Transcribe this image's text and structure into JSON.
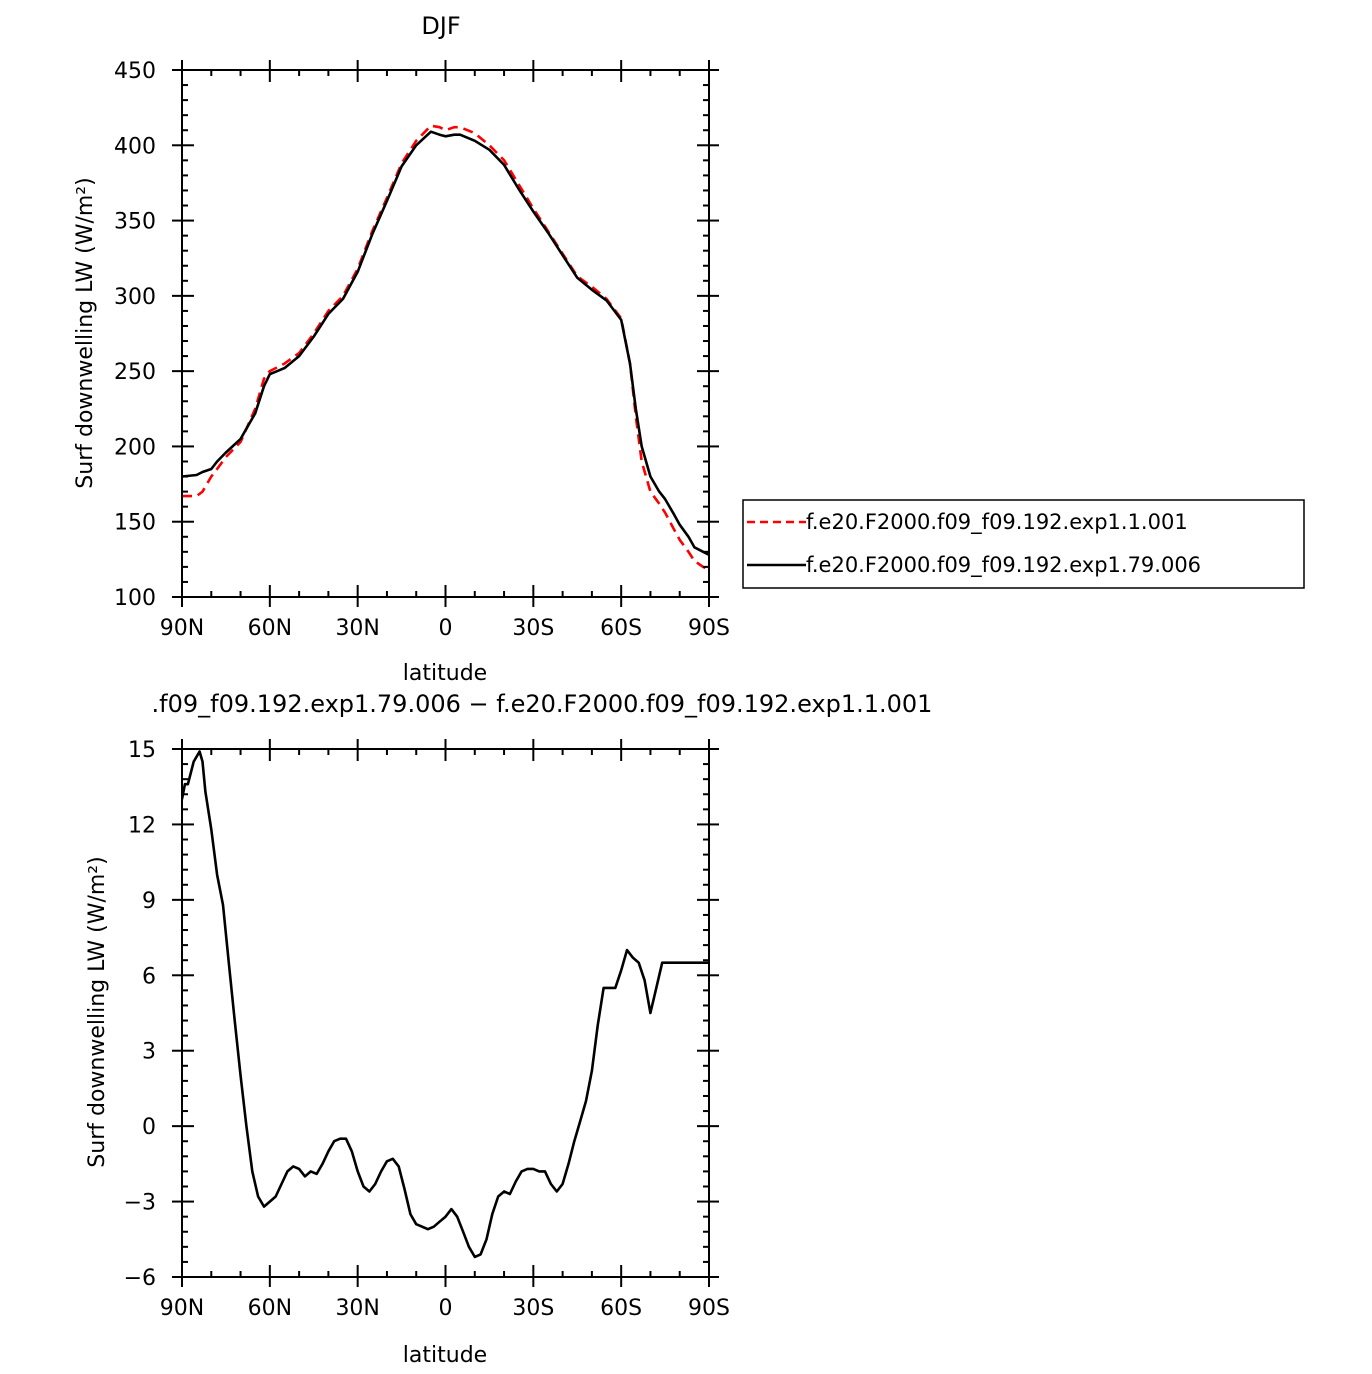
{
  "chart_data": [
    {
      "type": "line",
      "title": "DJF",
      "xlabel": "latitude",
      "ylabel": "Surf  downwelling LW (W/m²)",
      "xlim": [
        90,
        -90
      ],
      "ylim": [
        100,
        450
      ],
      "xticks": [
        90,
        60,
        30,
        0,
        -30,
        -60,
        -90
      ],
      "xtick_labels": [
        "90N",
        "60N",
        "30N",
        "0",
        "30S",
        "60S",
        "90S"
      ],
      "yticks": [
        100,
        150,
        200,
        250,
        300,
        350,
        400,
        450
      ],
      "ytick_labels": [
        "100",
        "150",
        "200",
        "250",
        "300",
        "350",
        "400",
        "450"
      ],
      "grid": false,
      "legend_position": "right",
      "series": [
        {
          "name": "f.e20.F2000.f09_f09.192.exp1.1.001",
          "color": "#ff0000",
          "dash": "dashed",
          "x": [
            90,
            85,
            83,
            80,
            78,
            75,
            70,
            65,
            62,
            60,
            55,
            50,
            45,
            40,
            35,
            30,
            25,
            20,
            15,
            10,
            5,
            2,
            0,
            -3,
            -5,
            -10,
            -15,
            -20,
            -25,
            -30,
            -35,
            -40,
            -45,
            -50,
            -55,
            -60,
            -63,
            -65,
            -67,
            -70,
            -73,
            -75,
            -78,
            -80,
            -83,
            -85,
            -88,
            -90
          ],
          "y": [
            167,
            167,
            170,
            180,
            185,
            193,
            203,
            225,
            245,
            250,
            255,
            262,
            275,
            290,
            300,
            318,
            343,
            365,
            388,
            403,
            413,
            412,
            410,
            412,
            412,
            408,
            400,
            390,
            374,
            358,
            343,
            328,
            313,
            306,
            298,
            285,
            255,
            220,
            190,
            170,
            162,
            156,
            145,
            138,
            130,
            124,
            120,
            118
          ]
        },
        {
          "name": "f.e20.F2000.f09_f09.192.exp1.79.006",
          "color": "#000000",
          "dash": "solid",
          "x": [
            90,
            85,
            83,
            80,
            78,
            75,
            70,
            65,
            62,
            60,
            55,
            50,
            45,
            40,
            35,
            30,
            25,
            20,
            15,
            10,
            5,
            2,
            0,
            -3,
            -5,
            -10,
            -15,
            -20,
            -25,
            -30,
            -35,
            -40,
            -45,
            -50,
            -55,
            -60,
            -63,
            -65,
            -67,
            -70,
            -73,
            -75,
            -78,
            -80,
            -83,
            -85,
            -88,
            -90
          ],
          "y": [
            180,
            181,
            183,
            185,
            190,
            196,
            205,
            222,
            240,
            248,
            252,
            260,
            273,
            288,
            298,
            316,
            341,
            363,
            386,
            400,
            409,
            407,
            406,
            407,
            407,
            403,
            397,
            387,
            371,
            356,
            342,
            327,
            312,
            304,
            297,
            284,
            255,
            225,
            200,
            180,
            170,
            165,
            155,
            148,
            140,
            133,
            130,
            128
          ]
        }
      ]
    },
    {
      "type": "line",
      "title": ".f09_f09.192.exp1.79.006  −  f.e20.F2000.f09_f09.192.exp1.1.001",
      "xlabel": "latitude",
      "ylabel": "Surf  downwelling LW (W/m²)",
      "xlim": [
        90,
        -90
      ],
      "ylim": [
        -6,
        15
      ],
      "xticks": [
        90,
        60,
        30,
        0,
        -30,
        -60,
        -90
      ],
      "xtick_labels": [
        "90N",
        "60N",
        "30N",
        "0",
        "30S",
        "60S",
        "90S"
      ],
      "yticks": [
        -6,
        -3,
        0,
        3,
        6,
        9,
        12,
        15
      ],
      "ytick_labels": [
        "−6",
        "−3",
        "0",
        "3",
        "6",
        "9",
        "12",
        "15"
      ],
      "grid": false,
      "series": [
        {
          "color": "#000000",
          "dash": "solid",
          "x": [
            90,
            89,
            88,
            86,
            84,
            83,
            82,
            80,
            78,
            76,
            74,
            72,
            70,
            68,
            66,
            64,
            62,
            60,
            58,
            56,
            54,
            52,
            50,
            48,
            46,
            44,
            42,
            40,
            38,
            36,
            34,
            32,
            30,
            28,
            26,
            24,
            22,
            20,
            18,
            16,
            14,
            12,
            10,
            8,
            6,
            4,
            2,
            0,
            -2,
            -4,
            -6,
            -8,
            -10,
            -12,
            -14,
            -16,
            -18,
            -20,
            -22,
            -24,
            -26,
            -28,
            -30,
            -32,
            -34,
            -36,
            -38,
            -40,
            -42,
            -44,
            -46,
            -48,
            -50,
            -52,
            -54,
            -56,
            -58,
            -60,
            -62,
            -64,
            -66,
            -68,
            -70,
            -72,
            -74,
            -76,
            -78,
            -80,
            -82,
            -84,
            -86,
            -88,
            -90
          ],
          "y": [
            13.0,
            13.6,
            13.6,
            14.5,
            14.9,
            14.5,
            13.3,
            11.8,
            10.0,
            8.8,
            6.5,
            4.2,
            2.0,
            0.0,
            -1.8,
            -2.8,
            -3.2,
            -3.0,
            -2.8,
            -2.3,
            -1.8,
            -1.6,
            -1.7,
            -2.0,
            -1.8,
            -1.9,
            -1.5,
            -1.0,
            -0.6,
            -0.5,
            -0.5,
            -1.0,
            -1.8,
            -2.4,
            -2.6,
            -2.3,
            -1.8,
            -1.4,
            -1.3,
            -1.6,
            -2.5,
            -3.5,
            -3.9,
            -4.0,
            -4.1,
            -4.0,
            -3.8,
            -3.6,
            -3.3,
            -3.6,
            -4.2,
            -4.8,
            -5.2,
            -5.1,
            -4.5,
            -3.5,
            -2.8,
            -2.6,
            -2.7,
            -2.2,
            -1.8,
            -1.7,
            -1.7,
            -1.8,
            -1.8,
            -2.3,
            -2.6,
            -2.3,
            -1.5,
            -0.6,
            0.2,
            1.0,
            2.2,
            4.0,
            5.5,
            5.5,
            5.5,
            6.2,
            7.0,
            6.7,
            6.5,
            5.8,
            4.5,
            5.5,
            6.5,
            6.5,
            6.5,
            6.5,
            6.5,
            6.5,
            6.5,
            6.5,
            6.5
          ]
        }
      ]
    }
  ]
}
